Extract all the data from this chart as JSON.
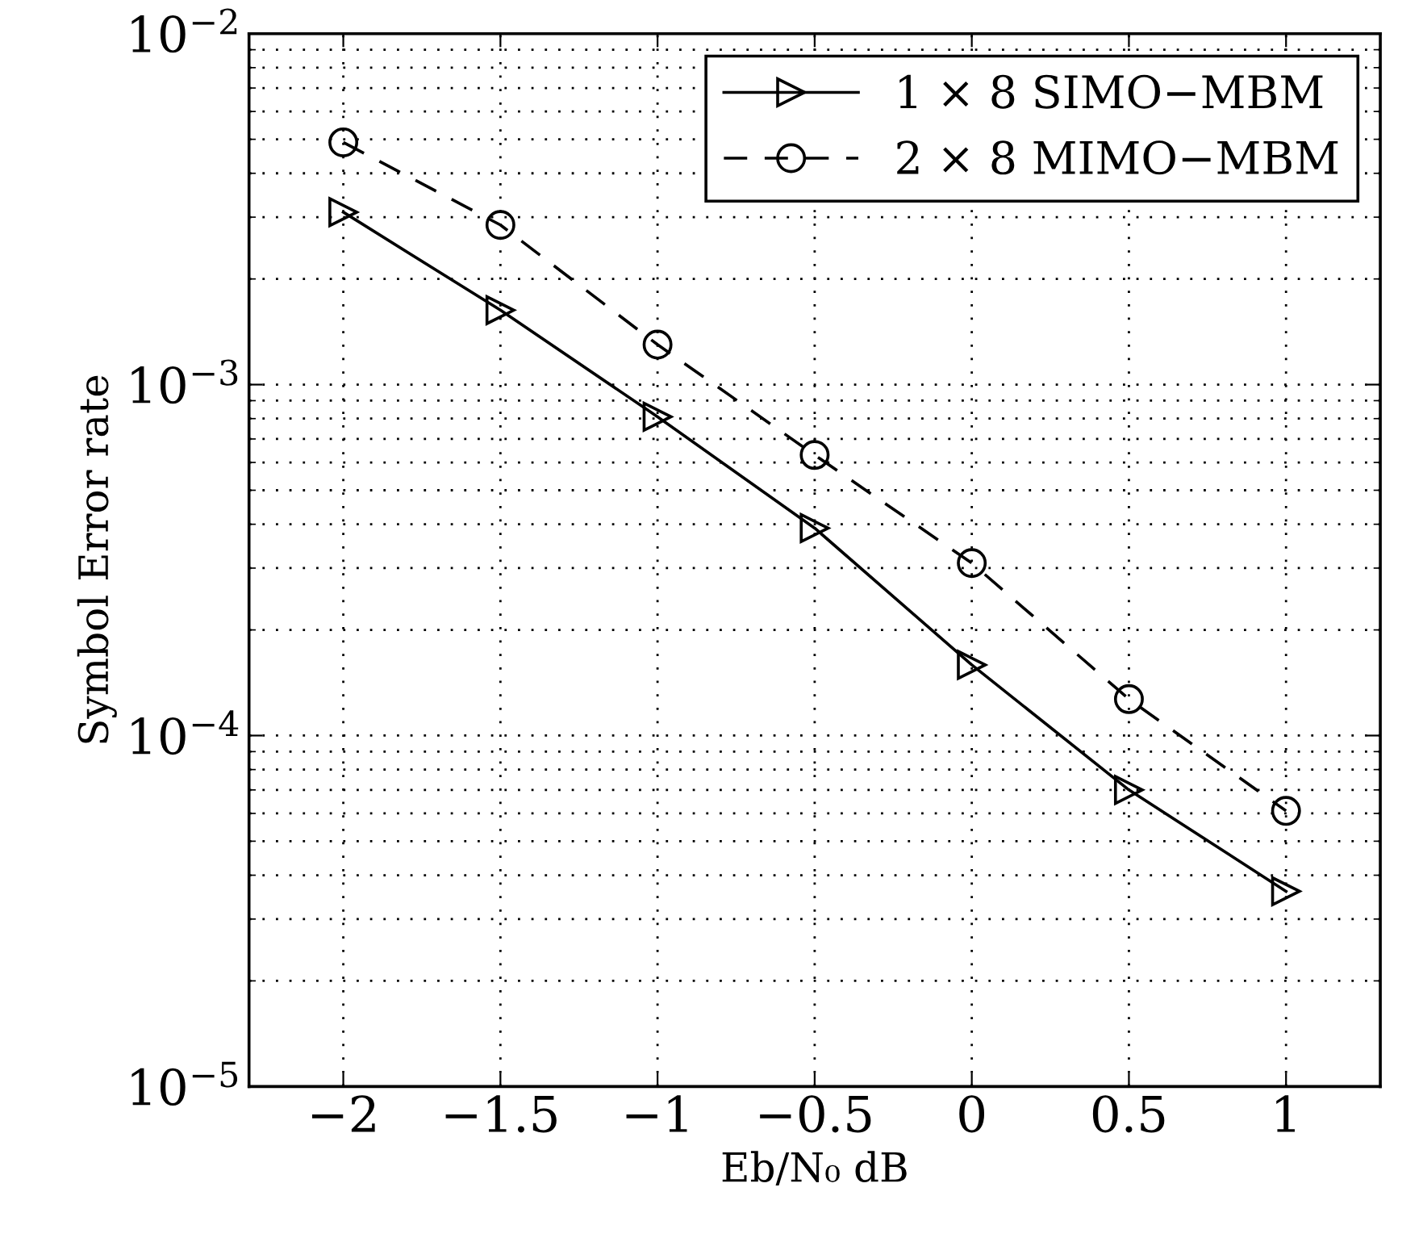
{
  "chart_data": {
    "type": "line",
    "xlabel": "Eb/N₀ dB",
    "ylabel": "Symbol Error rate",
    "x": [
      -2,
      -1.5,
      -1,
      -0.5,
      0,
      0.5,
      1
    ],
    "series": [
      {
        "name": "1 × 8 SIMO−MBM",
        "color": "#000000",
        "marker": "triangle",
        "line_style": "solid",
        "values": [
          0.0031,
          0.00163,
          0.00081,
          0.00039,
          0.000159,
          7e-05,
          3.6e-05
        ]
      },
      {
        "name": "2 × 8 MIMO−MBM",
        "color": "#000000",
        "marker": "circle",
        "line_style": "dashed",
        "values": [
          0.0049,
          0.00285,
          0.0013,
          0.00063,
          0.00031,
          0.000127,
          6.1e-05
        ]
      }
    ],
    "log": "y",
    "xlim": [
      -2.3,
      1.3
    ],
    "ylim": [
      1e-05,
      0.01
    ],
    "xticks": [
      {
        "value": -2,
        "label": "−2"
      },
      {
        "value": -1.5,
        "label": "−1.5"
      },
      {
        "value": -1,
        "label": "−1"
      },
      {
        "value": -0.5,
        "label": "−0.5"
      },
      0,
      0.5,
      1
    ],
    "yticks": [
      {
        "value": 1e-05,
        "label": "10$^{−5}$"
      },
      {
        "value": 0.0001,
        "label": "10$^{−4}$"
      },
      {
        "value": 0.001,
        "label": "10$^{−3}$"
      },
      {
        "value": 0.01,
        "label": "10$^{−2}$"
      }
    ],
    "grid": true,
    "legend": "top right"
  }
}
